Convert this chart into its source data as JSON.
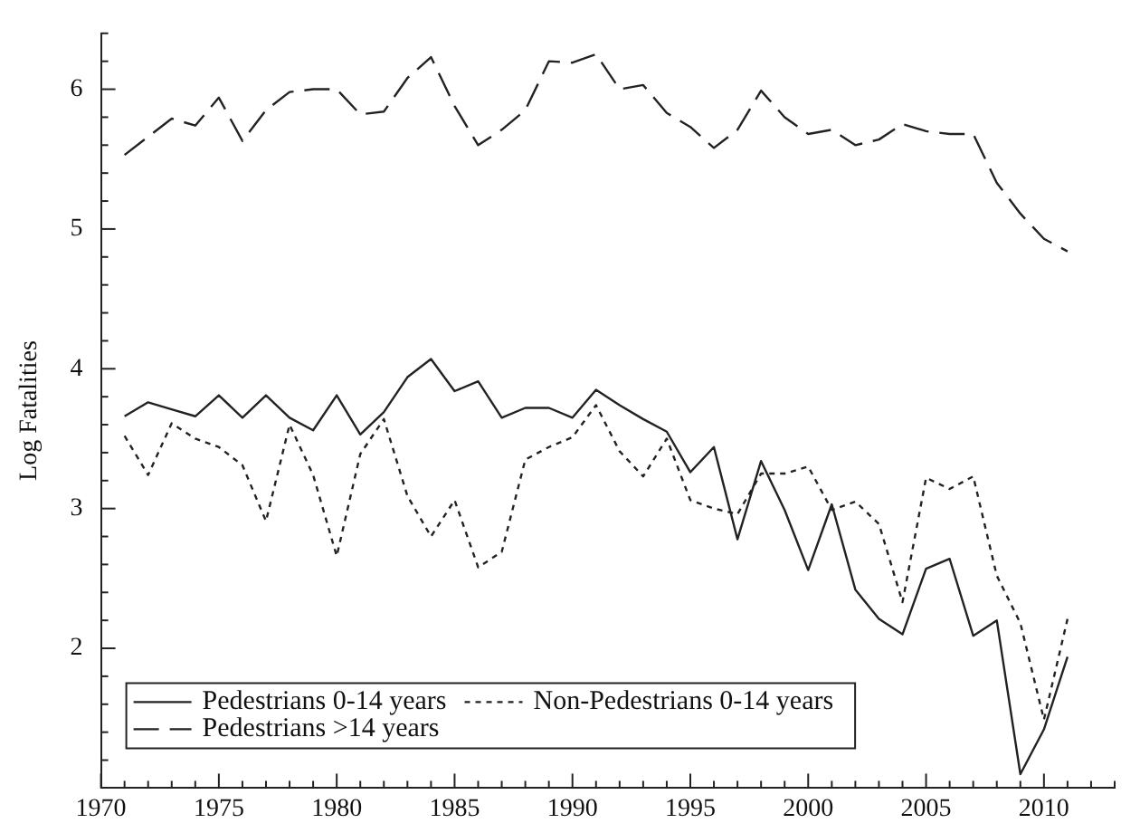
{
  "chart_data": {
    "type": "line",
    "ylabel": "Log Fatalities",
    "x": [
      1971,
      1972,
      1973,
      1974,
      1975,
      1976,
      1977,
      1978,
      1979,
      1980,
      1981,
      1982,
      1983,
      1984,
      1985,
      1986,
      1987,
      1988,
      1989,
      1990,
      1991,
      1992,
      1993,
      1994,
      1995,
      1996,
      1997,
      1998,
      1999,
      2000,
      2001,
      2002,
      2003,
      2004,
      2005,
      2006,
      2007,
      2008,
      2009,
      2010,
      2011
    ],
    "series": [
      {
        "name": "Pedestrians 0-14 years",
        "color": "#222222",
        "line_style": "solid",
        "values": [
          3.66,
          3.76,
          3.71,
          3.66,
          3.81,
          3.65,
          3.81,
          3.65,
          3.56,
          3.81,
          3.53,
          3.69,
          3.94,
          4.07,
          3.84,
          3.91,
          3.65,
          3.72,
          3.72,
          3.65,
          3.85,
          3.74,
          3.64,
          3.55,
          3.26,
          3.44,
          2.78,
          3.34,
          2.99,
          2.56,
          3.03,
          2.42,
          2.21,
          2.1,
          2.57,
          2.64,
          2.09,
          2.2,
          1.1,
          1.42,
          1.94
        ]
      },
      {
        "name": "Non-Pedestrians 0-14 years",
        "color": "#222222",
        "line_style": "dotted",
        "values": [
          3.52,
          3.24,
          3.61,
          3.5,
          3.44,
          3.31,
          2.91,
          3.6,
          3.24,
          2.66,
          3.39,
          3.64,
          3.09,
          2.8,
          3.06,
          2.58,
          2.69,
          3.35,
          3.44,
          3.51,
          3.74,
          3.41,
          3.23,
          3.5,
          3.06,
          3.0,
          2.96,
          3.25,
          3.25,
          3.3,
          2.99,
          3.05,
          2.89,
          2.33,
          3.22,
          3.14,
          3.23,
          2.52,
          2.18,
          1.49,
          2.21
        ]
      },
      {
        "name": "Pedestrians >14 years",
        "color": "#222222",
        "line_style": "dashed",
        "values": [
          5.53,
          5.66,
          5.79,
          5.74,
          5.94,
          5.63,
          5.85,
          5.98,
          6.0,
          6.0,
          5.82,
          5.84,
          6.08,
          6.23,
          5.88,
          5.6,
          5.71,
          5.85,
          6.2,
          6.19,
          6.25,
          6.0,
          6.03,
          5.83,
          5.73,
          5.58,
          5.71,
          5.99,
          5.8,
          5.68,
          5.71,
          5.6,
          5.64,
          5.75,
          5.7,
          5.68,
          5.68,
          5.33,
          5.11,
          4.93,
          4.84
        ]
      }
    ],
    "xlim": [
      1970,
      2013
    ],
    "xticks": [
      1970,
      {
        "value": 1971,
        "label": null
      },
      {
        "value": 1972,
        "label": null
      },
      {
        "value": 1973,
        "label": null
      },
      {
        "value": 1974,
        "label": null
      },
      1975,
      {
        "value": 1976,
        "label": null
      },
      {
        "value": 1977,
        "label": null
      },
      {
        "value": 1978,
        "label": null
      },
      {
        "value": 1979,
        "label": null
      },
      1980,
      {
        "value": 1981,
        "label": null
      },
      {
        "value": 1982,
        "label": null
      },
      {
        "value": 1983,
        "label": null
      },
      {
        "value": 1984,
        "label": null
      },
      1985,
      {
        "value": 1986,
        "label": null
      },
      {
        "value": 1987,
        "label": null
      },
      {
        "value": 1988,
        "label": null
      },
      {
        "value": 1989,
        "label": null
      },
      1990,
      {
        "value": 1991,
        "label": null
      },
      {
        "value": 1992,
        "label": null
      },
      {
        "value": 1993,
        "label": null
      },
      {
        "value": 1994,
        "label": null
      },
      1995,
      {
        "value": 1996,
        "label": null
      },
      {
        "value": 1997,
        "label": null
      },
      {
        "value": 1998,
        "label": null
      },
      {
        "value": 1999,
        "label": null
      },
      2000,
      {
        "value": 2001,
        "label": null
      },
      {
        "value": 2002,
        "label": null
      },
      {
        "value": 2003,
        "label": null
      },
      {
        "value": 2004,
        "label": null
      },
      2005,
      {
        "value": 2006,
        "label": null
      },
      {
        "value": 2007,
        "label": null
      },
      {
        "value": 2008,
        "label": null
      },
      {
        "value": 2009,
        "label": null
      },
      2010,
      {
        "value": 2011,
        "label": null
      },
      {
        "value": 2012,
        "label": null
      },
      {
        "value": 2013,
        "label": null
      }
    ],
    "ylim": [
      1,
      6.4
    ],
    "yticks": [
      {
        "value": 1.2,
        "label": null
      },
      {
        "value": 1.4,
        "label": null
      },
      {
        "value": 1.6,
        "label": null
      },
      {
        "value": 1.8,
        "label": null
      },
      2,
      {
        "value": 2.2,
        "label": null
      },
      {
        "value": 2.4,
        "label": null
      },
      {
        "value": 2.6,
        "label": null
      },
      {
        "value": 2.8,
        "label": null
      },
      3,
      {
        "value": 3.2,
        "label": null
      },
      {
        "value": 3.4,
        "label": null
      },
      {
        "value": 3.6,
        "label": null
      },
      {
        "value": 3.8,
        "label": null
      },
      4,
      {
        "value": 4.2,
        "label": null
      },
      {
        "value": 4.4,
        "label": null
      },
      {
        "value": 4.6,
        "label": null
      },
      {
        "value": 4.8,
        "label": null
      },
      5,
      {
        "value": 5.2,
        "label": null
      },
      {
        "value": 5.4,
        "label": null
      },
      {
        "value": 5.6,
        "label": null
      },
      {
        "value": 5.8,
        "label": null
      },
      6,
      {
        "value": 6.2,
        "label": null
      },
      {
        "value": 6.4,
        "label": null
      }
    ],
    "grid": false,
    "legend": "bottom left",
    "marker": "none"
  }
}
